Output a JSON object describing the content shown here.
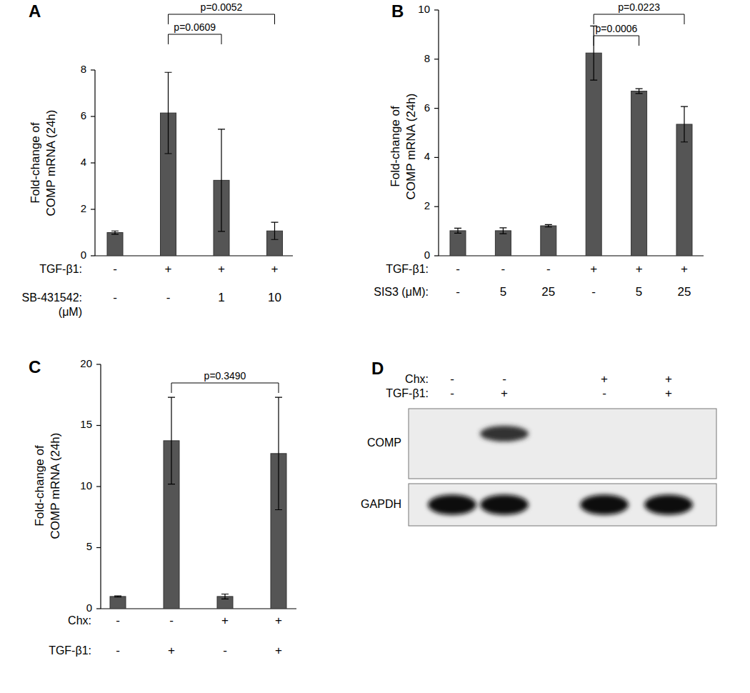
{
  "chart_data": [
    {
      "type": "bar",
      "panel": "A",
      "y_label": "Fold-change of\nCOMP mRNA (24h)",
      "categories": [
        null,
        null,
        null,
        null
      ],
      "values": [
        1.0,
        6.15,
        3.25,
        1.07
      ],
      "errors": [
        0.07,
        1.75,
        2.2,
        0.37
      ],
      "color": "#555555",
      "ylim": [
        0,
        8
      ],
      "yticks": [
        0,
        2,
        4,
        6,
        8
      ],
      "conditions": [
        {
          "label": "TGF-β1:",
          "values": [
            "-",
            "+",
            "+",
            "+"
          ]
        },
        {
          "label": "SB-431542:\n(μM)",
          "values": [
            "-",
            "-",
            "1",
            "10"
          ]
        }
      ],
      "annotations": [
        {
          "text": "p=0.0609",
          "between": [
            1,
            2
          ]
        },
        {
          "text": "p=0.0052",
          "between": [
            1,
            3
          ]
        }
      ]
    },
    {
      "type": "bar",
      "panel": "B",
      "y_label": "Fold-change of\nCOMP mRNA (24h)",
      "categories": [
        null,
        null,
        null,
        null,
        null,
        null
      ],
      "values": [
        1.02,
        1.02,
        1.22,
        8.25,
        6.7,
        5.35
      ],
      "errors": [
        0.1,
        0.12,
        0.05,
        1.1,
        0.1,
        0.72
      ],
      "color": "#555555",
      "ylim": [
        0,
        10
      ],
      "yticks": [
        0,
        2,
        4,
        6,
        8,
        10
      ],
      "conditions": [
        {
          "label": "TGF-β1:",
          "values": [
            "-",
            "-",
            "-",
            "+",
            "+",
            "+"
          ]
        },
        {
          "label": "SIS3 (μM):",
          "values": [
            "-",
            "5",
            "25",
            "-",
            "5",
            "25"
          ]
        }
      ],
      "annotations": [
        {
          "text": "p=0.0006",
          "between": [
            3,
            4
          ]
        },
        {
          "text": "p=0.0223",
          "between": [
            3,
            5
          ]
        }
      ]
    },
    {
      "type": "bar",
      "panel": "C",
      "y_label": "Fold-change of\nCOMP mRNA (24h)",
      "categories": [
        null,
        null,
        null,
        null
      ],
      "values": [
        1.0,
        13.75,
        1.0,
        12.7
      ],
      "errors": [
        0.05,
        3.55,
        0.2,
        4.6
      ],
      "color": "#555555",
      "ylim": [
        0,
        20
      ],
      "yticks": [
        0,
        5,
        10,
        15,
        20
      ],
      "conditions": [
        {
          "label": "Chx:",
          "values": [
            "-",
            "-",
            "+",
            "+"
          ]
        },
        {
          "label": "TGF-β1:",
          "values": [
            "-",
            "+",
            "-",
            "+"
          ]
        }
      ],
      "annotations": [
        {
          "text": "p=0.3490",
          "between": [
            1,
            3
          ]
        }
      ]
    }
  ],
  "blot": {
    "panel": "D",
    "conditions": [
      {
        "label": "Chx:",
        "values": [
          "-",
          "-",
          "+",
          "+"
        ]
      },
      {
        "label": "TGF-β1:",
        "values": [
          "-",
          "+",
          "-",
          "+"
        ]
      }
    ],
    "bands": [
      {
        "label": "COMP",
        "present": [
          false,
          true,
          false,
          false
        ]
      },
      {
        "label": "GAPDH",
        "present": [
          true,
          true,
          true,
          true
        ]
      }
    ]
  }
}
